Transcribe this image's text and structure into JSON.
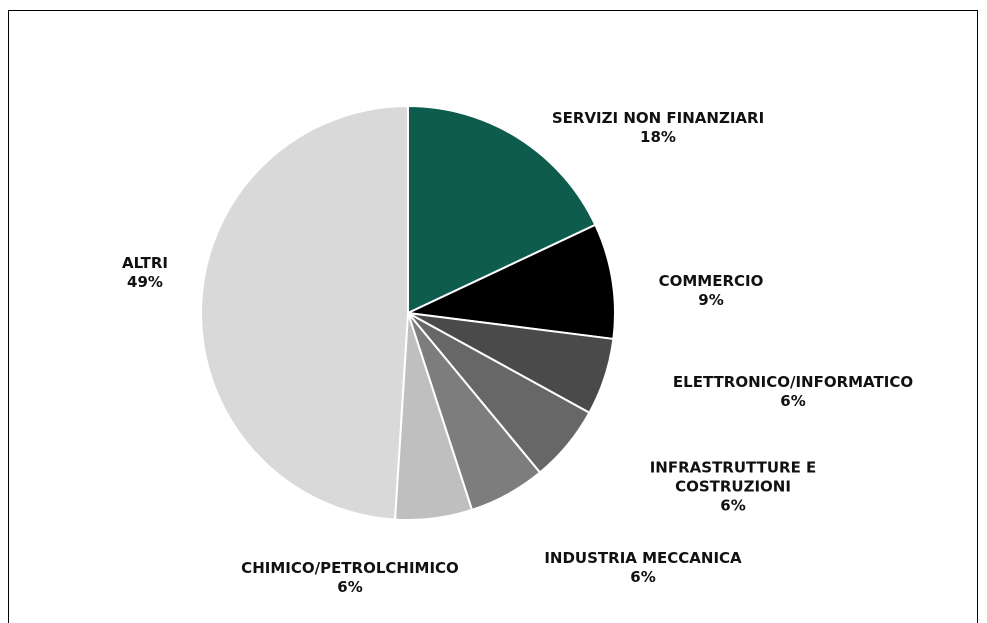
{
  "chart_data": {
    "type": "pie",
    "categories": [
      "SERVIZI NON FINANZIARI",
      "COMMERCIO",
      "ELETTRONICO/INFORMATICO",
      "INFRASTRUTTURE E COSTRUZIONI",
      "INDUSTRIA MECCANICA",
      "CHIMICO/PETROLCHIMICO",
      "ALTRI"
    ],
    "values": [
      18,
      9,
      6,
      6,
      6,
      6,
      49
    ],
    "value_labels": [
      "18%",
      "9%",
      "6%",
      "6%",
      "6%",
      "6%",
      "49%"
    ],
    "colors": [
      "#0e5c4e",
      "#000000",
      "#4a4a4a",
      "#676767",
      "#7d7d7d",
      "#bfbfbf",
      "#d9d9d9"
    ]
  }
}
